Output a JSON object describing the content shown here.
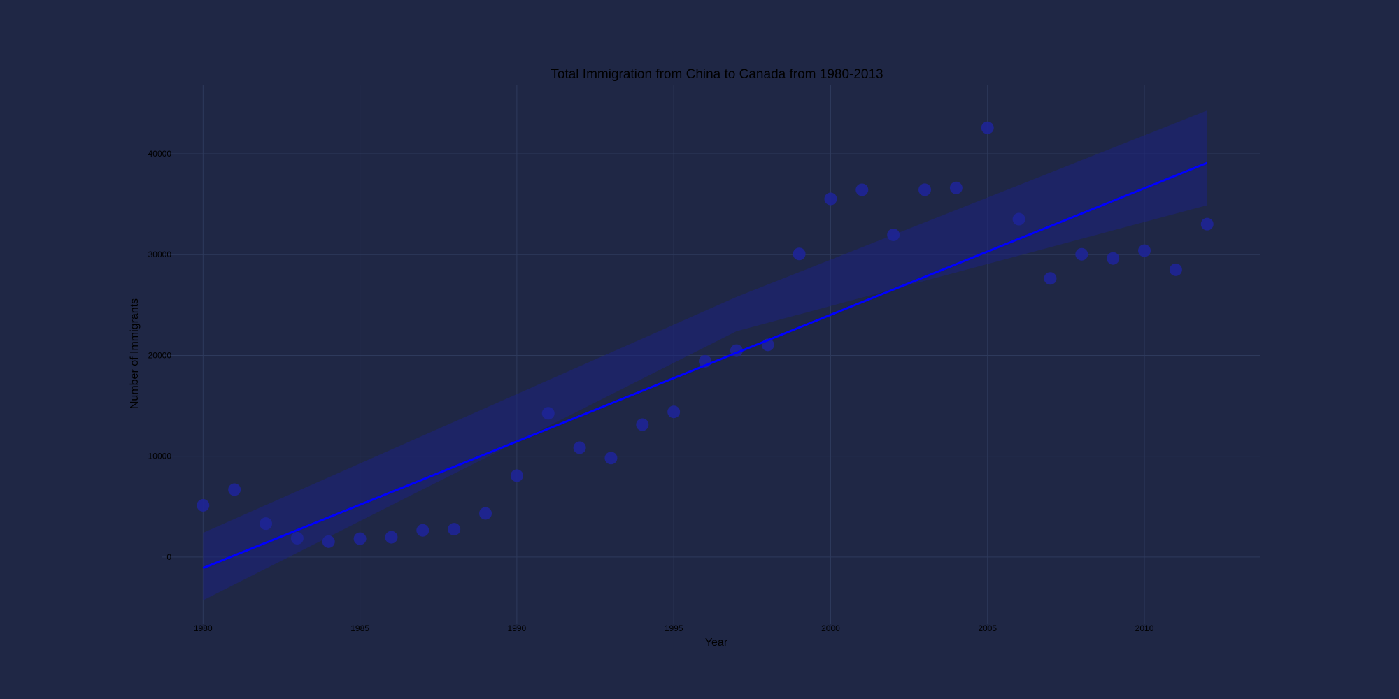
{
  "colors": {
    "background": "#1f2745",
    "grid": "#2e3a5c",
    "points": "#1e2596",
    "regression_line": "#0000ff",
    "confidence_band": "#1c2380",
    "text": "#000000"
  },
  "chart_data": {
    "type": "scatter",
    "title": "Total Immigration from China to Canada from 1980-2013",
    "xlabel": "Year",
    "ylabel": "Number of Immigrants",
    "xlim": [
      1978.7,
      2013.7
    ],
    "ylim": [
      -6600,
      46800
    ],
    "grid": true,
    "x_ticks": [
      1980,
      1985,
      1990,
      1995,
      2000,
      2005,
      2010
    ],
    "y_ticks": [
      0,
      10000,
      20000,
      30000,
      40000
    ],
    "series": [
      {
        "x": [
          1980,
          1981,
          1982,
          1983,
          1984,
          1985,
          1986,
          1987,
          1988,
          1989,
          1990,
          1991,
          1992,
          1993,
          1994,
          1995,
          1996,
          1997,
          1998,
          1999,
          2000,
          2001,
          2002,
          2003,
          2004,
          2005,
          2006,
          2007,
          2008,
          2009,
          2010,
          2011,
          2012
        ],
        "y": [
          5123,
          6682,
          3308,
          1863,
          1527,
          1816,
          1960,
          2643,
          2758,
          4323,
          8076,
          14255,
          10846,
          9817,
          13128,
          14398,
          19415,
          20475,
          21049,
          30069,
          35529,
          36434,
          31961,
          36439,
          36619,
          42584,
          33518,
          27642,
          30037,
          29622,
          30391,
          28502,
          33024
        ]
      }
    ],
    "regression": {
      "x_range": [
        1980,
        2012
      ],
      "y_at_start": -1100,
      "y_at_end": 39100,
      "ci_lower_at_start": -4300,
      "ci_upper_at_start": 2400,
      "ci_lower_at_mid": 22400,
      "ci_upper_at_mid": 25800,
      "mid_x": 1997,
      "ci_lower_at_end": 34900,
      "ci_upper_at_end": 44300
    }
  }
}
